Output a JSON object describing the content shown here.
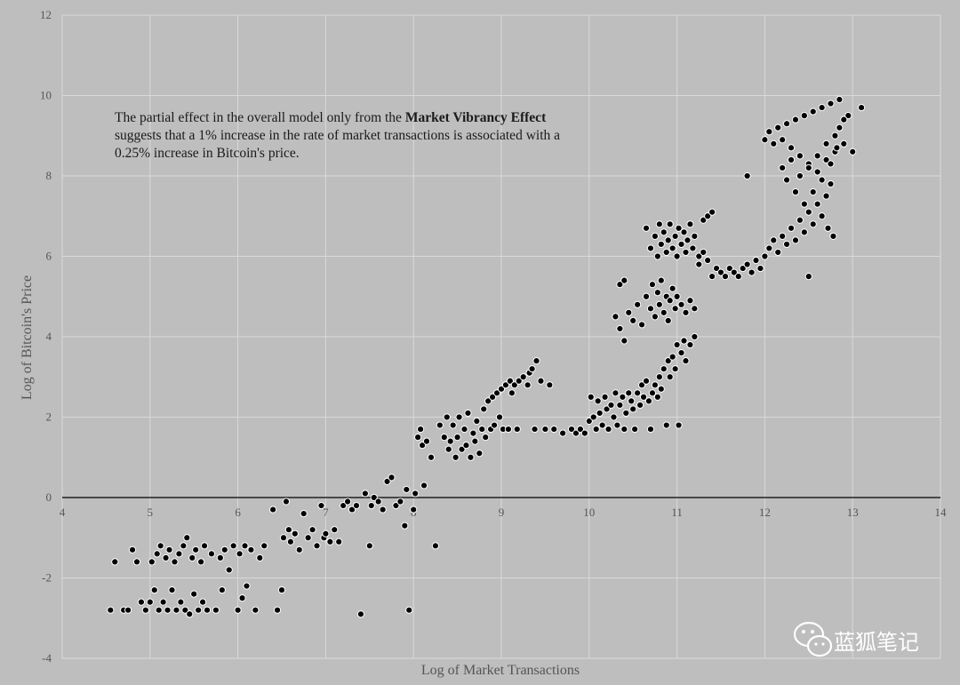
{
  "chart_data": {
    "type": "scatter",
    "title": "",
    "xlabel": "Log of Market Transactions",
    "ylabel": "Log of Bitcoin's Price",
    "xlim": [
      4,
      14
    ],
    "ylim": [
      -4,
      12
    ],
    "xticks": [
      4,
      5,
      6,
      7,
      8,
      9,
      10,
      11,
      12,
      13,
      14
    ],
    "yticks": [
      -4,
      -2,
      0,
      2,
      4,
      6,
      8,
      10,
      12
    ],
    "grid": true,
    "legend": "none",
    "zero_line": true,
    "colors": {
      "background": "#bebebe",
      "grid": "#d9d9d9",
      "marker_fill": "#000000",
      "marker_edge": "#ffffff",
      "zero_line": "#000000"
    },
    "annotation": {
      "line1_prefix": "The partial effect in the overall model only from the ",
      "line1_bold": "Market Vibrancy Effect",
      "line2": "suggests that a 1% increase in the rate of market transactions is associated with a",
      "line3": "0.25% increase in Bitcoin's price."
    },
    "points": [
      [
        4.55,
        -2.8
      ],
      [
        4.6,
        -1.6
      ],
      [
        4.7,
        -2.8
      ],
      [
        4.75,
        -2.8
      ],
      [
        4.8,
        -1.3
      ],
      [
        4.85,
        -1.6
      ],
      [
        4.9,
        -2.6
      ],
      [
        4.95,
        -2.8
      ],
      [
        5.0,
        -2.6
      ],
      [
        5.02,
        -1.6
      ],
      [
        5.05,
        -2.3
      ],
      [
        5.08,
        -1.4
      ],
      [
        5.1,
        -2.8
      ],
      [
        5.12,
        -1.2
      ],
      [
        5.15,
        -2.6
      ],
      [
        5.18,
        -1.5
      ],
      [
        5.2,
        -2.8
      ],
      [
        5.22,
        -1.3
      ],
      [
        5.25,
        -2.3
      ],
      [
        5.28,
        -1.6
      ],
      [
        5.3,
        -2.8
      ],
      [
        5.33,
        -1.4
      ],
      [
        5.35,
        -2.6
      ],
      [
        5.38,
        -1.2
      ],
      [
        5.4,
        -2.8
      ],
      [
        5.42,
        -1.0
      ],
      [
        5.45,
        -2.9
      ],
      [
        5.48,
        -1.5
      ],
      [
        5.5,
        -2.4
      ],
      [
        5.52,
        -1.3
      ],
      [
        5.55,
        -2.8
      ],
      [
        5.58,
        -1.6
      ],
      [
        5.6,
        -2.6
      ],
      [
        5.62,
        -1.2
      ],
      [
        5.65,
        -2.8
      ],
      [
        5.7,
        -1.4
      ],
      [
        5.75,
        -2.8
      ],
      [
        5.8,
        -1.5
      ],
      [
        5.82,
        -2.3
      ],
      [
        5.85,
        -1.3
      ],
      [
        5.9,
        -1.8
      ],
      [
        5.95,
        -1.2
      ],
      [
        6.0,
        -2.8
      ],
      [
        6.02,
        -1.4
      ],
      [
        6.05,
        -2.5
      ],
      [
        6.08,
        -1.2
      ],
      [
        6.1,
        -2.2
      ],
      [
        6.15,
        -1.3
      ],
      [
        6.2,
        -2.8
      ],
      [
        6.25,
        -1.5
      ],
      [
        6.3,
        -1.2
      ],
      [
        6.4,
        -0.3
      ],
      [
        6.45,
        -2.8
      ],
      [
        6.5,
        -2.3
      ],
      [
        6.52,
        -1.0
      ],
      [
        6.55,
        -0.1
      ],
      [
        6.58,
        -0.8
      ],
      [
        6.6,
        -1.1
      ],
      [
        6.65,
        -0.9
      ],
      [
        6.7,
        -1.3
      ],
      [
        6.75,
        -0.4
      ],
      [
        6.8,
        -1.0
      ],
      [
        6.85,
        -0.8
      ],
      [
        6.9,
        -1.2
      ],
      [
        6.95,
        -0.2
      ],
      [
        6.98,
        -1.0
      ],
      [
        7.0,
        -0.9
      ],
      [
        7.05,
        -1.1
      ],
      [
        7.1,
        -0.8
      ],
      [
        7.15,
        -1.1
      ],
      [
        7.2,
        -0.2
      ],
      [
        7.25,
        -0.1
      ],
      [
        7.3,
        -0.3
      ],
      [
        7.35,
        -0.2
      ],
      [
        7.4,
        -2.9
      ],
      [
        7.45,
        0.1
      ],
      [
        7.5,
        -1.2
      ],
      [
        7.52,
        -0.2
      ],
      [
        7.55,
        0.0
      ],
      [
        7.6,
        -0.1
      ],
      [
        7.65,
        -0.3
      ],
      [
        7.7,
        0.4
      ],
      [
        7.75,
        0.5
      ],
      [
        7.8,
        -0.2
      ],
      [
        7.85,
        -0.1
      ],
      [
        7.9,
        -0.7
      ],
      [
        7.92,
        0.2
      ],
      [
        7.95,
        -2.8
      ],
      [
        8.0,
        -0.3
      ],
      [
        8.02,
        0.1
      ],
      [
        8.05,
        1.5
      ],
      [
        8.08,
        1.7
      ],
      [
        8.1,
        1.3
      ],
      [
        8.12,
        0.3
      ],
      [
        8.15,
        1.4
      ],
      [
        8.2,
        1.0
      ],
      [
        8.25,
        -1.2
      ],
      [
        8.3,
        1.8
      ],
      [
        8.35,
        1.5
      ],
      [
        8.38,
        2.0
      ],
      [
        8.4,
        1.2
      ],
      [
        8.42,
        1.4
      ],
      [
        8.45,
        1.8
      ],
      [
        8.48,
        1.0
      ],
      [
        8.5,
        1.5
      ],
      [
        8.52,
        2.0
      ],
      [
        8.55,
        1.2
      ],
      [
        8.58,
        1.7
      ],
      [
        8.6,
        1.3
      ],
      [
        8.62,
        2.1
      ],
      [
        8.65,
        1.0
      ],
      [
        8.68,
        1.6
      ],
      [
        8.7,
        1.4
      ],
      [
        8.72,
        1.9
      ],
      [
        8.75,
        1.1
      ],
      [
        8.78,
        1.7
      ],
      [
        8.8,
        2.2
      ],
      [
        8.82,
        1.5
      ],
      [
        8.85,
        2.4
      ],
      [
        8.88,
        1.7
      ],
      [
        8.9,
        2.5
      ],
      [
        8.92,
        1.8
      ],
      [
        8.95,
        2.6
      ],
      [
        8.98,
        2.0
      ],
      [
        9.0,
        2.7
      ],
      [
        9.02,
        1.7
      ],
      [
        9.05,
        2.8
      ],
      [
        9.08,
        1.7
      ],
      [
        9.1,
        2.9
      ],
      [
        9.12,
        2.6
      ],
      [
        9.15,
        2.8
      ],
      [
        9.18,
        1.7
      ],
      [
        9.2,
        2.9
      ],
      [
        9.25,
        3.0
      ],
      [
        9.3,
        2.8
      ],
      [
        9.32,
        3.1
      ],
      [
        9.35,
        3.2
      ],
      [
        9.38,
        1.7
      ],
      [
        9.4,
        3.4
      ],
      [
        9.45,
        2.9
      ],
      [
        9.5,
        1.7
      ],
      [
        9.55,
        2.8
      ],
      [
        9.6,
        1.7
      ],
      [
        9.7,
        1.6
      ],
      [
        9.8,
        1.7
      ],
      [
        9.85,
        1.6
      ],
      [
        9.9,
        1.7
      ],
      [
        9.95,
        1.6
      ],
      [
        10.0,
        1.9
      ],
      [
        10.02,
        2.5
      ],
      [
        10.05,
        2.0
      ],
      [
        10.08,
        1.7
      ],
      [
        10.1,
        2.4
      ],
      [
        10.12,
        2.1
      ],
      [
        10.15,
        1.8
      ],
      [
        10.18,
        2.5
      ],
      [
        10.2,
        2.2
      ],
      [
        10.22,
        1.7
      ],
      [
        10.25,
        2.3
      ],
      [
        10.28,
        2.0
      ],
      [
        10.3,
        2.6
      ],
      [
        10.32,
        1.8
      ],
      [
        10.35,
        2.3
      ],
      [
        10.38,
        2.5
      ],
      [
        10.4,
        1.7
      ],
      [
        10.42,
        2.1
      ],
      [
        10.45,
        2.6
      ],
      [
        10.48,
        2.4
      ],
      [
        10.5,
        2.2
      ],
      [
        10.52,
        1.7
      ],
      [
        10.55,
        2.6
      ],
      [
        10.58,
        2.3
      ],
      [
        10.6,
        2.8
      ],
      [
        10.62,
        2.5
      ],
      [
        10.65,
        2.9
      ],
      [
        10.68,
        2.4
      ],
      [
        10.7,
        1.7
      ],
      [
        10.72,
        2.6
      ],
      [
        10.75,
        2.8
      ],
      [
        10.78,
        2.5
      ],
      [
        10.8,
        3.0
      ],
      [
        10.82,
        2.7
      ],
      [
        10.85,
        3.2
      ],
      [
        10.88,
        1.8
      ],
      [
        10.9,
        3.4
      ],
      [
        10.92,
        3.0
      ],
      [
        10.95,
        3.5
      ],
      [
        10.98,
        3.2
      ],
      [
        11.0,
        3.8
      ],
      [
        11.02,
        1.8
      ],
      [
        11.05,
        3.6
      ],
      [
        11.08,
        3.9
      ],
      [
        11.1,
        3.4
      ],
      [
        11.15,
        3.8
      ],
      [
        11.2,
        4.0
      ],
      [
        10.3,
        4.5
      ],
      [
        10.35,
        4.2
      ],
      [
        10.4,
        3.9
      ],
      [
        10.45,
        4.6
      ],
      [
        10.5,
        4.4
      ],
      [
        10.55,
        4.8
      ],
      [
        10.6,
        4.3
      ],
      [
        10.65,
        5.0
      ],
      [
        10.7,
        4.7
      ],
      [
        10.72,
        5.3
      ],
      [
        10.75,
        4.5
      ],
      [
        10.78,
        5.1
      ],
      [
        10.8,
        4.8
      ],
      [
        10.82,
        5.4
      ],
      [
        10.85,
        4.6
      ],
      [
        10.88,
        5.0
      ],
      [
        10.9,
        4.4
      ],
      [
        10.92,
        4.9
      ],
      [
        10.95,
        5.2
      ],
      [
        10.98,
        4.7
      ],
      [
        11.0,
        5.0
      ],
      [
        11.05,
        4.8
      ],
      [
        11.1,
        4.6
      ],
      [
        11.15,
        4.9
      ],
      [
        11.2,
        4.7
      ],
      [
        10.35,
        5.3
      ],
      [
        10.4,
        5.4
      ],
      [
        10.65,
        6.7
      ],
      [
        10.7,
        6.2
      ],
      [
        10.75,
        6.5
      ],
      [
        10.78,
        6.0
      ],
      [
        10.8,
        6.8
      ],
      [
        10.82,
        6.3
      ],
      [
        10.85,
        6.6
      ],
      [
        10.88,
        6.1
      ],
      [
        10.9,
        6.4
      ],
      [
        10.92,
        6.8
      ],
      [
        10.95,
        6.2
      ],
      [
        10.98,
        6.5
      ],
      [
        11.0,
        6.0
      ],
      [
        11.02,
        6.7
      ],
      [
        11.05,
        6.3
      ],
      [
        11.08,
        6.6
      ],
      [
        11.1,
        6.1
      ],
      [
        11.12,
        6.4
      ],
      [
        11.15,
        6.8
      ],
      [
        11.18,
        6.2
      ],
      [
        11.2,
        6.5
      ],
      [
        11.25,
        6.0
      ],
      [
        11.3,
        6.9
      ],
      [
        11.35,
        7.0
      ],
      [
        11.4,
        7.1
      ],
      [
        11.25,
        5.8
      ],
      [
        11.3,
        6.1
      ],
      [
        11.35,
        5.9
      ],
      [
        11.4,
        5.5
      ],
      [
        11.45,
        5.7
      ],
      [
        11.5,
        5.6
      ],
      [
        11.55,
        5.5
      ],
      [
        11.6,
        5.7
      ],
      [
        11.65,
        5.6
      ],
      [
        11.7,
        5.5
      ],
      [
        11.75,
        5.7
      ],
      [
        11.8,
        5.8
      ],
      [
        11.85,
        5.6
      ],
      [
        11.9,
        5.9
      ],
      [
        11.95,
        5.7
      ],
      [
        12.0,
        6.0
      ],
      [
        12.05,
        6.2
      ],
      [
        12.1,
        6.4
      ],
      [
        12.15,
        6.1
      ],
      [
        12.2,
        6.5
      ],
      [
        12.25,
        6.3
      ],
      [
        12.3,
        6.7
      ],
      [
        12.35,
        6.4
      ],
      [
        12.4,
        6.9
      ],
      [
        12.45,
        6.6
      ],
      [
        12.5,
        7.1
      ],
      [
        12.55,
        6.8
      ],
      [
        12.6,
        7.3
      ],
      [
        12.65,
        7.0
      ],
      [
        12.7,
        7.5
      ],
      [
        12.72,
        6.7
      ],
      [
        12.75,
        7.8
      ],
      [
        12.78,
        6.5
      ],
      [
        12.5,
        5.5
      ],
      [
        11.8,
        8.0
      ],
      [
        12.0,
        8.9
      ],
      [
        12.05,
        9.1
      ],
      [
        12.1,
        8.8
      ],
      [
        12.15,
        9.2
      ],
      [
        12.2,
        8.9
      ],
      [
        12.25,
        9.3
      ],
      [
        12.3,
        8.7
      ],
      [
        12.35,
        9.4
      ],
      [
        12.4,
        8.5
      ],
      [
        12.45,
        9.5
      ],
      [
        12.5,
        8.3
      ],
      [
        12.55,
        9.6
      ],
      [
        12.6,
        8.1
      ],
      [
        12.65,
        9.7
      ],
      [
        12.7,
        8.4
      ],
      [
        12.75,
        9.8
      ],
      [
        12.8,
        8.6
      ],
      [
        12.85,
        9.9
      ],
      [
        12.9,
        8.8
      ],
      [
        12.95,
        9.5
      ],
      [
        13.0,
        8.6
      ],
      [
        13.1,
        9.7
      ],
      [
        12.2,
        8.2
      ],
      [
        12.25,
        7.9
      ],
      [
        12.3,
        8.4
      ],
      [
        12.35,
        7.6
      ],
      [
        12.4,
        8.0
      ],
      [
        12.45,
        7.3
      ],
      [
        12.5,
        8.2
      ],
      [
        12.55,
        7.6
      ],
      [
        12.6,
        8.5
      ],
      [
        12.65,
        7.9
      ],
      [
        12.7,
        8.8
      ],
      [
        12.75,
        8.3
      ],
      [
        12.8,
        9.0
      ],
      [
        12.82,
        8.7
      ],
      [
        12.85,
        9.2
      ],
      [
        12.9,
        9.4
      ]
    ]
  },
  "watermark": {
    "icon": "wechat-icon",
    "text": "蓝狐笔记"
  }
}
